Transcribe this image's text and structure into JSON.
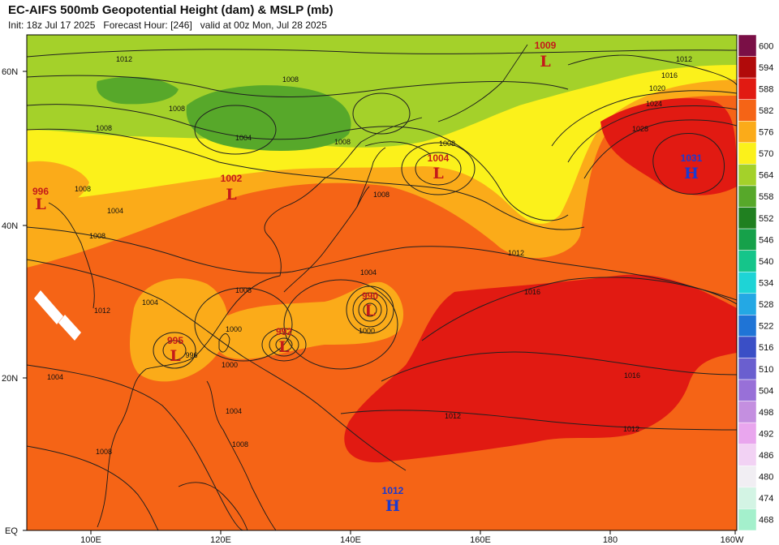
{
  "header": {
    "title": "EC-AIFS 500mb Geopotential Height (dam) & MSLP (mb)",
    "subtitle": "Init: 18z Jul 17 2025   Forecast Hour: [246]   valid at 00z Mon, Jul 28 2025"
  },
  "axes": {
    "lat_labels": [
      "60N",
      "40N",
      "20N",
      "EQ"
    ],
    "lon_labels": [
      "100E",
      "120E",
      "140E",
      "160E",
      "180",
      "160W"
    ]
  },
  "colorbar": {
    "levels": [
      "600",
      "594",
      "588",
      "582",
      "576",
      "570",
      "564",
      "558",
      "552",
      "546",
      "540",
      "534",
      "528",
      "522",
      "516",
      "510",
      "504",
      "498",
      "492",
      "486",
      "480",
      "474",
      "468"
    ],
    "colors": [
      "#7a0f46",
      "#b10a0a",
      "#e11a12",
      "#f56416",
      "#fbab19",
      "#fbf11b",
      "#a4d12a",
      "#57a82a",
      "#208020",
      "#16a14a",
      "#15c58a",
      "#1ed4d6",
      "#24a8e4",
      "#1f74d6",
      "#3a4fc6",
      "#6a5fcf",
      "#9870d8",
      "#c48fe0",
      "#e9a6ee",
      "#f2d2f4",
      "#f1eef3",
      "#d3f4e4",
      "#a4f0cc"
    ]
  },
  "pressure_centers": [
    {
      "type": "L",
      "value": "1009",
      "color": "#c41a1a"
    },
    {
      "type": "L",
      "value": "1004",
      "color": "#c41a1a"
    },
    {
      "type": "L",
      "value": "1002",
      "color": "#c41a1a"
    },
    {
      "type": "L",
      "value": "996",
      "color": "#c41a1a"
    },
    {
      "type": "L",
      "value": "990",
      "color": "#c41a1a"
    },
    {
      "type": "L",
      "value": "992",
      "color": "#c41a1a"
    },
    {
      "type": "L",
      "value": "995",
      "color": "#c41a1a"
    },
    {
      "type": "H",
      "value": "1031",
      "color": "#1a3ad0"
    },
    {
      "type": "H",
      "value": "1012",
      "color": "#1a3ad0"
    }
  ],
  "isobar_labels": [
    "1012",
    "1008",
    "1008",
    "1008",
    "1004",
    "1008",
    "1016",
    "1020",
    "1024",
    "1028",
    "1012",
    "1008",
    "1008",
    "1012",
    "1004",
    "1008",
    "1012",
    "1004",
    "1000",
    "1000",
    "996",
    "1004",
    "1000",
    "1016",
    "1012",
    "1016",
    "1012",
    "1004",
    "1008",
    "1008",
    "1004",
    "1008",
    "1008"
  ]
}
